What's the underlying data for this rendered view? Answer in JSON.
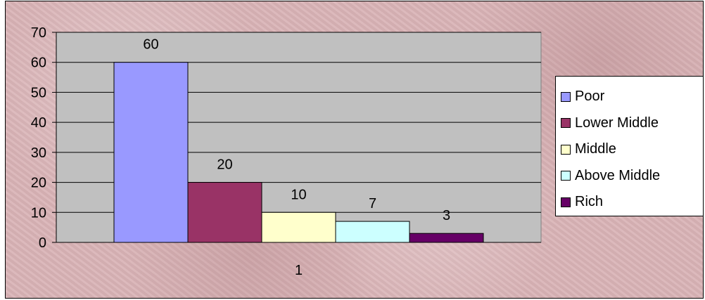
{
  "chart_data": {
    "type": "bar",
    "categories": [
      "1"
    ],
    "series": [
      {
        "name": "Poor",
        "values": [
          60
        ],
        "color": "#9999ff"
      },
      {
        "name": "Lower Middle",
        "values": [
          20
        ],
        "color": "#993366"
      },
      {
        "name": "Middle",
        "values": [
          10
        ],
        "color": "#ffffcc"
      },
      {
        "name": "Above Middle",
        "values": [
          7
        ],
        "color": "#ccffff"
      },
      {
        "name": "Rich",
        "values": [
          3
        ],
        "color": "#660066"
      }
    ],
    "yticks": [
      "0",
      "10",
      "20",
      "30",
      "40",
      "50",
      "60",
      "70"
    ],
    "ylim": [
      0,
      70
    ],
    "grid": true,
    "data_labels": true,
    "legend_position": "right",
    "plot_background": "#c0c0c0"
  }
}
